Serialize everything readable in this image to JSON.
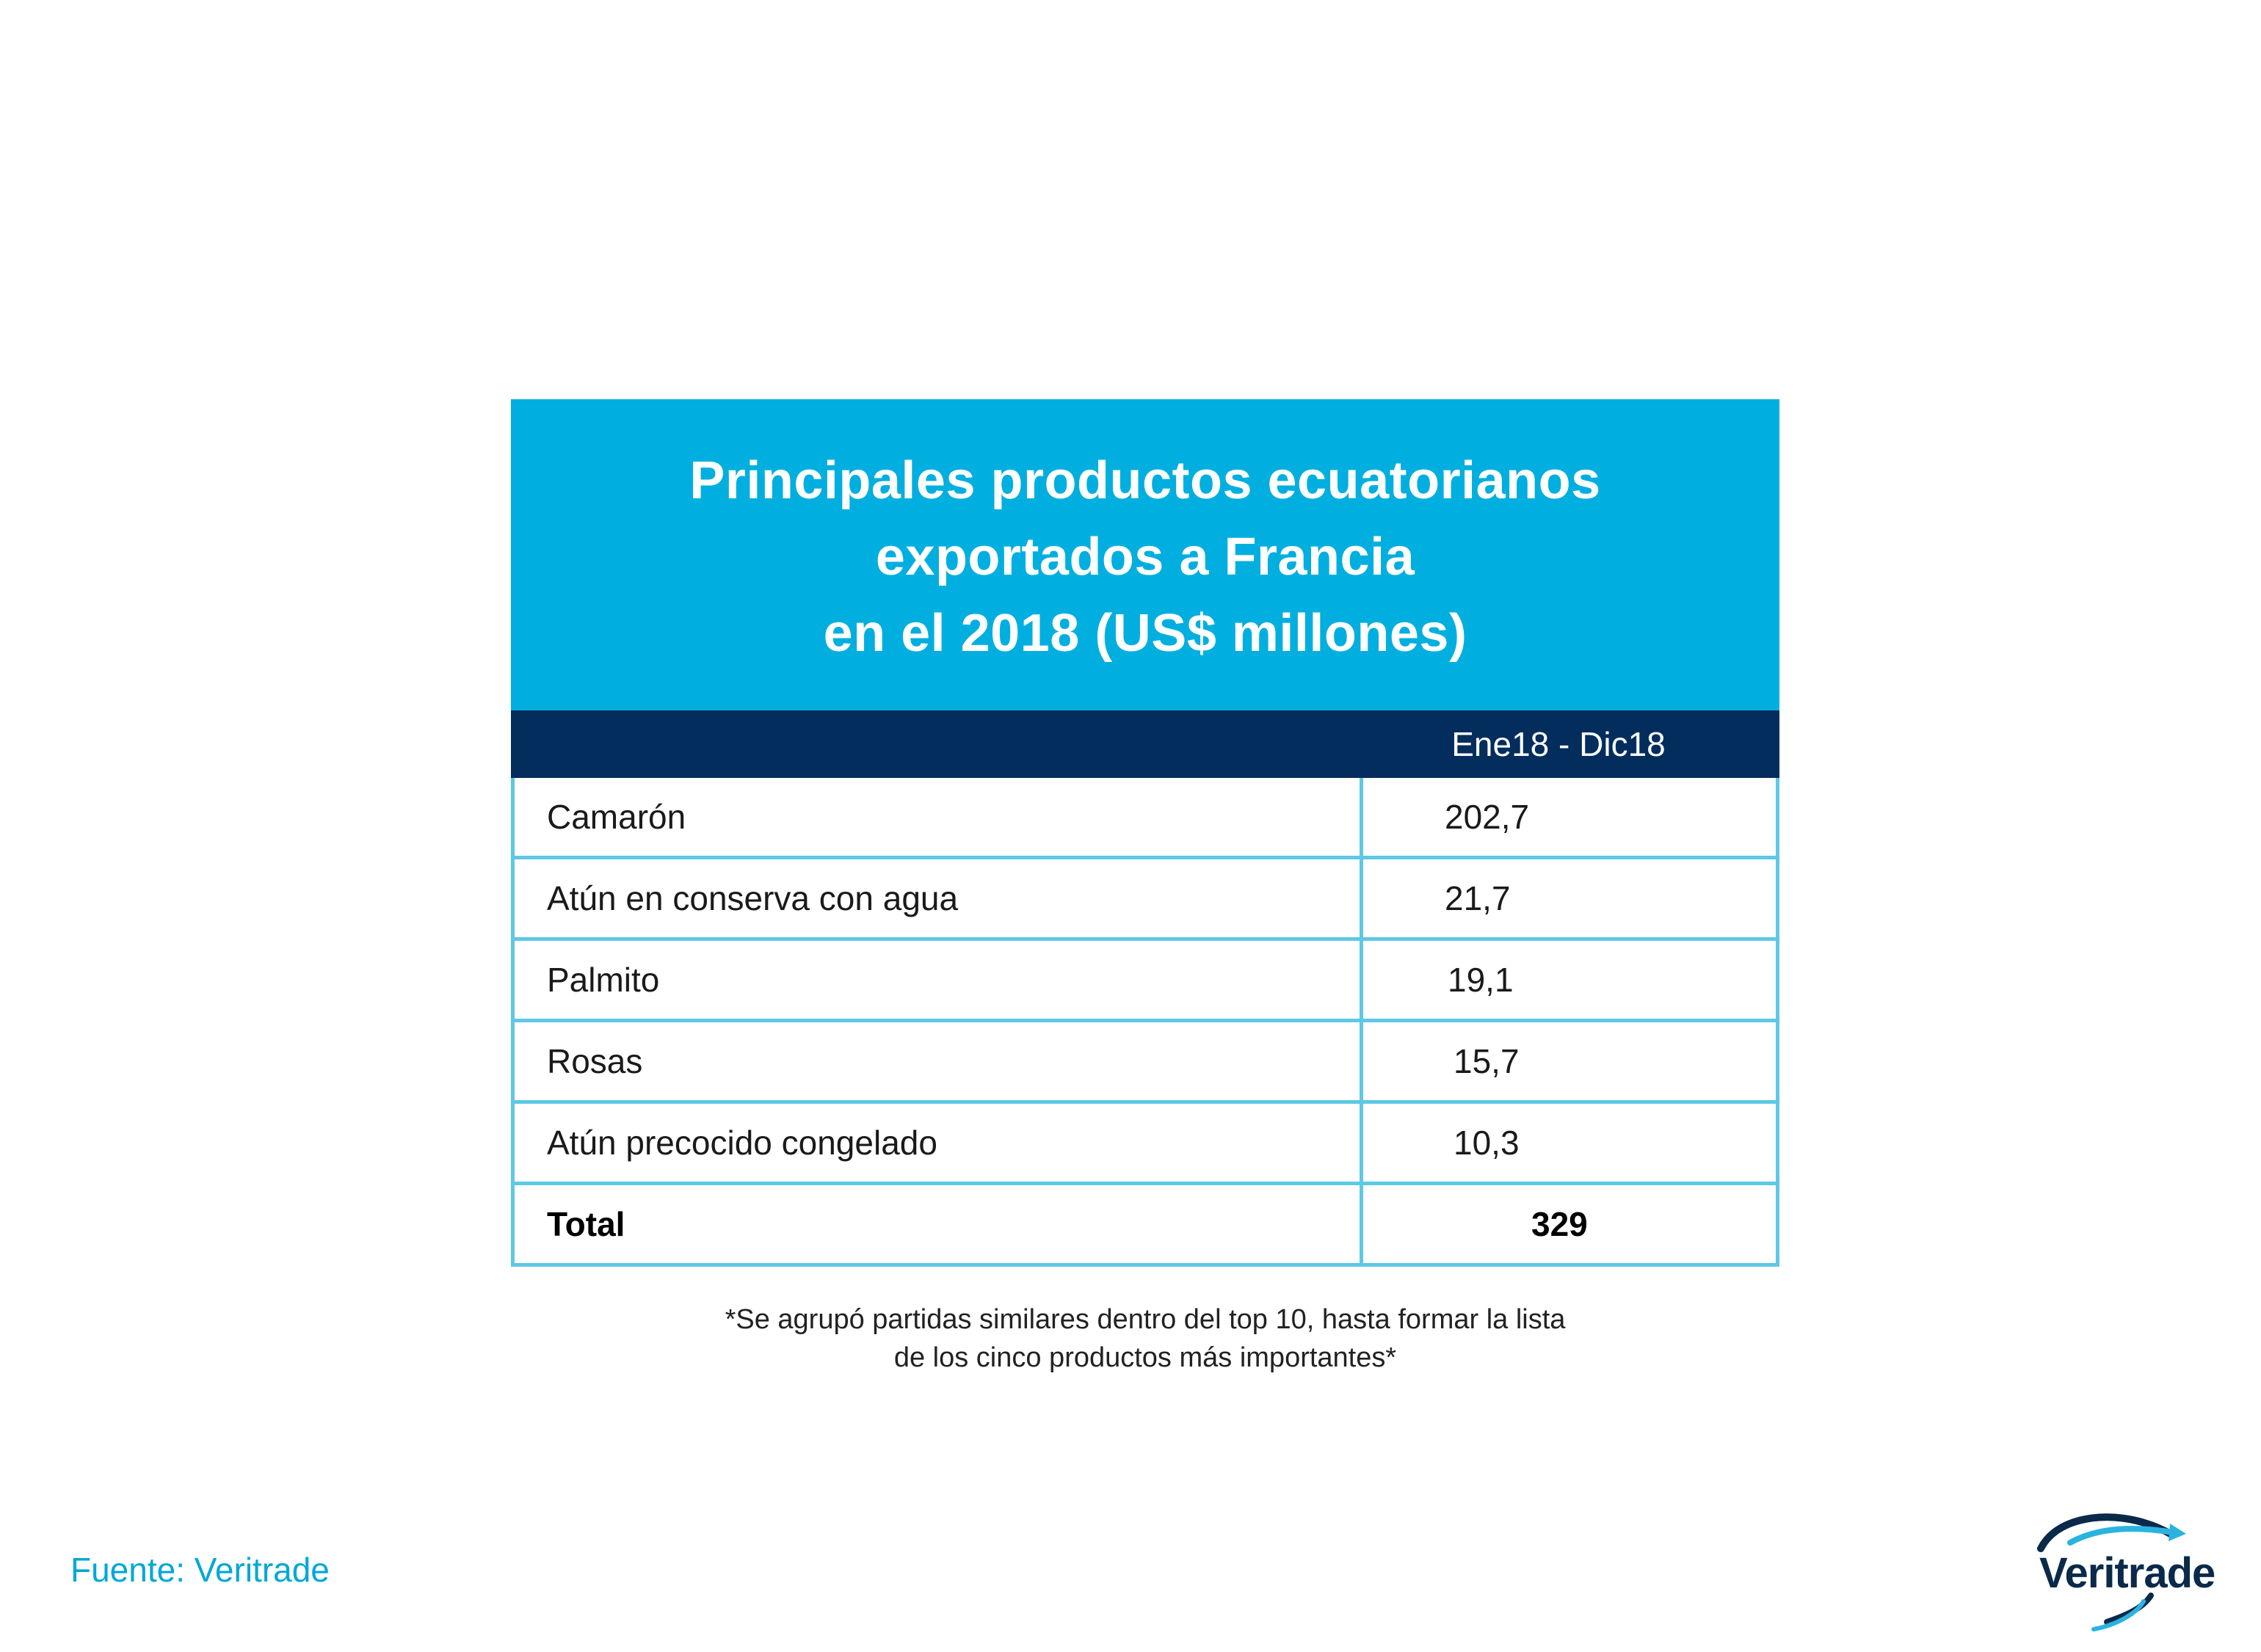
{
  "colors": {
    "title_band": "#00afdf",
    "header_band": "#022d5c",
    "grid": "#5ec8e5",
    "source_text": "#00a7d8"
  },
  "chart_data": {
    "type": "table",
    "title_lines": [
      "Principales productos ecuatorianos",
      "exportados a Francia",
      "en el 2018 (US$ millones)"
    ],
    "column_header": "Ene18 - Dic18",
    "rows": [
      {
        "product": "Camarón",
        "value": "202,7"
      },
      {
        "product": "Atún en conserva con agua",
        "value": "21,7"
      },
      {
        "product": "Palmito",
        "value": "19,1"
      },
      {
        "product": "Rosas",
        "value": "15,7"
      },
      {
        "product": "Atún precocido congelado",
        "value": "10,3"
      }
    ],
    "total": {
      "label": "Total",
      "value": "329"
    }
  },
  "footnote": {
    "line1": "*Se agrupó partidas similares dentro del top 10, hasta formar la lista",
    "line2": "de los cinco productos más importantes*"
  },
  "source": "Fuente: Veritrade",
  "logo": {
    "text": "Veritrade",
    "icon": "veritrade-swoosh-icon"
  }
}
